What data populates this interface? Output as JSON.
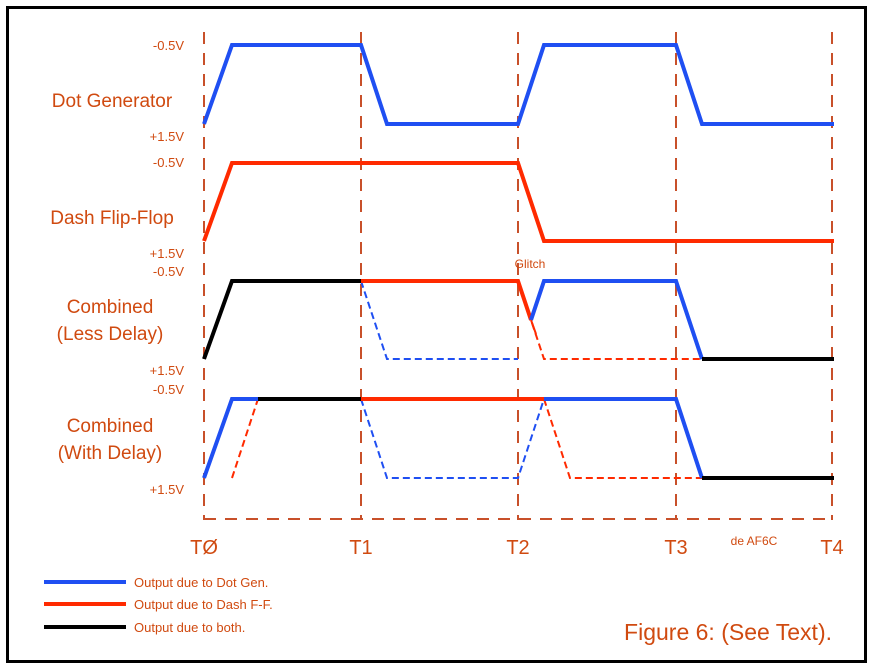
{
  "colors": {
    "dot": "#1f4ff2",
    "dash": "#ff2a00",
    "both": "#000000",
    "label": "#d04a10",
    "grid": "#c8502a"
  },
  "time_labels": [
    "TØ",
    "T1",
    "T2",
    "T3",
    "T4"
  ],
  "credit": "de AF6C",
  "rows": [
    {
      "name": "Dot Generator",
      "name_lines": [
        "Dot Generator"
      ],
      "top": "-0.5V",
      "bottom": "+1.5V"
    },
    {
      "name": "Dash Flip-Flop",
      "name_lines": [
        "Dash Flip-Flop"
      ],
      "top": "-0.5V",
      "bottom": "+1.5V"
    },
    {
      "name": "Combined (Less Delay)",
      "name_lines": [
        "Combined",
        "(Less Delay)"
      ],
      "top": "-0.5V",
      "bottom": "+1.5V"
    },
    {
      "name": "Combined (With Delay)",
      "name_lines": [
        "Combined",
        "(With Delay)"
      ],
      "top": "-0.5V",
      "bottom": "+1.5V"
    }
  ],
  "annotation": "Glitch",
  "legend": [
    {
      "label": "Output due to Dot Gen.",
      "color": "dot"
    },
    {
      "label": "Output due to Dash F-F.",
      "color": "dash"
    },
    {
      "label": "Output due to both.",
      "color": "both"
    }
  ],
  "caption": "Figure 6: (See Text)."
}
